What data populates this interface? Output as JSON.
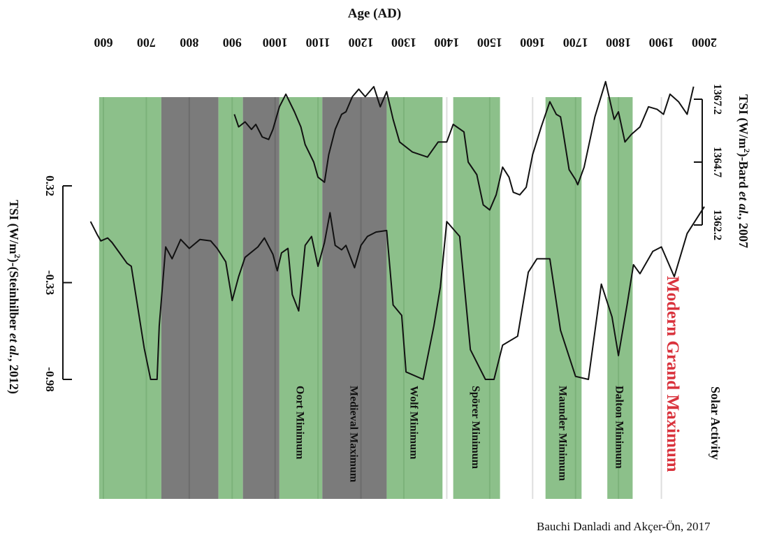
{
  "chart_data": {
    "type": "line",
    "xlabel": "Age (AD)",
    "x_ticks": [
      600,
      700,
      800,
      900,
      1000,
      1100,
      1200,
      1300,
      1400,
      1500,
      1600,
      1700,
      1800,
      1900,
      2000
    ],
    "x_range": [
      570,
      2020
    ],
    "colors": {
      "green": "#8cc08a",
      "grey": "#7b7b7b",
      "modern": "#d9323c",
      "line": "#111111"
    },
    "periods": [
      {
        "label": "",
        "start": 590,
        "end": 735,
        "kind": "minimum"
      },
      {
        "label": "",
        "start": 735,
        "end": 868,
        "kind": "maximum"
      },
      {
        "label": "",
        "start": 868,
        "end": 925,
        "kind": "minimum"
      },
      {
        "label": "",
        "start": 925,
        "end": 1010,
        "kind": "maximum"
      },
      {
        "label": "Oort Minimum",
        "start": 1010,
        "end": 1110,
        "kind": "minimum"
      },
      {
        "label": "Medieval Maximum",
        "start": 1110,
        "end": 1260,
        "kind": "maximum"
      },
      {
        "label": "Wolf Minimum",
        "start": 1260,
        "end": 1390,
        "kind": "minimum"
      },
      {
        "label": "Spörer Minimum",
        "start": 1415,
        "end": 1524,
        "kind": "minimum"
      },
      {
        "label": "Maunder Minimum",
        "start": 1630,
        "end": 1714,
        "kind": "minimum"
      },
      {
        "label": "Dalton Minimum",
        "start": 1774,
        "end": 1833,
        "kind": "minimum"
      }
    ],
    "annotation": "Modern Grand Maximum",
    "solar_label": "Solar Activity",
    "credit": "Bauchi Danladi and Akçer-Ön, 2017",
    "series": [
      {
        "name": "Steinhilber et al., 2012",
        "label_prefix": "TSI (W/m",
        "label_suffix": ")-(Steinhilber ",
        "label_italic": "et al.",
        "label_end": ", 2012)",
        "ticks": [
          "0.32",
          "-0.33",
          "-0.98"
        ],
        "tick_values": [
          0.32,
          -0.33,
          -0.98
        ],
        "ylim": [
          -0.98,
          0.32
        ],
        "x": [
          570,
          586,
          594,
          610,
          620,
          640,
          655,
          665,
          695,
          710,
          725,
          730,
          745,
          760,
          780,
          800,
          825,
          850,
          865,
          885,
          900,
          915,
          930,
          960,
          975,
          995,
          1005,
          1015,
          1030,
          1040,
          1055,
          1070,
          1085,
          1100,
          1115,
          1128,
          1140,
          1155,
          1165,
          1185,
          1200,
          1215,
          1235,
          1260,
          1275,
          1295,
          1305,
          1345,
          1370,
          1385,
          1400,
          1430,
          1455,
          1490,
          1510,
          1530,
          1565,
          1590,
          1610,
          1640,
          1665,
          1700,
          1730,
          1760,
          1785,
          1800,
          1820,
          1835,
          1850,
          1880,
          1900,
          1930,
          1960,
          2000
        ],
        "y": [
          0.08,
          -0.01,
          -0.05,
          -0.03,
          -0.06,
          -0.14,
          -0.2,
          -0.22,
          -0.77,
          -0.98,
          -0.98,
          -0.62,
          -0.09,
          -0.17,
          -0.04,
          -0.1,
          -0.04,
          -0.05,
          -0.1,
          -0.19,
          -0.45,
          -0.29,
          -0.16,
          -0.09,
          -0.03,
          -0.14,
          -0.25,
          -0.13,
          -0.1,
          -0.41,
          -0.52,
          -0.08,
          -0.02,
          -0.22,
          -0.06,
          0.14,
          -0.08,
          -0.11,
          -0.08,
          -0.23,
          -0.08,
          -0.02,
          0.01,
          0.02,
          -0.48,
          -0.55,
          -0.93,
          -0.98,
          -0.62,
          -0.36,
          0.08,
          -0.02,
          -0.78,
          -0.98,
          -0.98,
          -0.75,
          -0.69,
          -0.26,
          -0.17,
          -0.17,
          -0.65,
          -0.96,
          -0.98,
          -0.34,
          -0.56,
          -0.82,
          -0.48,
          -0.21,
          -0.27,
          -0.12,
          -0.09,
          -0.29,
          0.0,
          0.18
        ]
      },
      {
        "name": "Bard et al., 2007",
        "label_prefix": "TSI (W/m",
        "label_suffix": ")-Bard ",
        "label_italic": "et al.",
        "label_end": ", 2007",
        "ticks": [
          "1367.2",
          "1364.7",
          "1362.2"
        ],
        "tick_values": [
          1367.2,
          1364.7,
          1362.2
        ],
        "ylim": [
          1362.2,
          1367.2
        ],
        "x": [
          905,
          915,
          930,
          945,
          955,
          970,
          985,
          995,
          1010,
          1025,
          1045,
          1060,
          1070,
          1090,
          1100,
          1115,
          1125,
          1140,
          1155,
          1165,
          1180,
          1195,
          1210,
          1230,
          1245,
          1260,
          1275,
          1290,
          1320,
          1355,
          1380,
          1400,
          1415,
          1440,
          1450,
          1470,
          1485,
          1500,
          1515,
          1530,
          1545,
          1555,
          1570,
          1585,
          1600,
          1620,
          1640,
          1655,
          1665,
          1670,
          1685,
          1700,
          1705,
          1720,
          1745,
          1770,
          1790,
          1800,
          1815,
          1830,
          1850,
          1870,
          1890,
          1905,
          1920,
          1940,
          1960,
          1975
        ],
        "y": [
          1366.6,
          1366.1,
          1366.3,
          1366.0,
          1366.2,
          1365.7,
          1365.6,
          1366.0,
          1366.9,
          1367.4,
          1366.7,
          1366.1,
          1365.4,
          1364.7,
          1364.1,
          1363.9,
          1365.0,
          1366.0,
          1366.6,
          1366.7,
          1367.3,
          1367.6,
          1367.3,
          1367.7,
          1366.9,
          1367.5,
          1366.4,
          1365.5,
          1365.1,
          1364.9,
          1365.5,
          1365.5,
          1366.2,
          1365.9,
          1364.7,
          1364.2,
          1363.0,
          1362.8,
          1363.4,
          1364.5,
          1364.1,
          1363.5,
          1363.4,
          1363.7,
          1365.0,
          1366.1,
          1367.1,
          1366.6,
          1366.5,
          1366.0,
          1364.4,
          1364.0,
          1363.8,
          1364.5,
          1366.5,
          1367.9,
          1366.4,
          1366.7,
          1365.5,
          1365.8,
          1366.1,
          1366.9,
          1366.8,
          1366.6,
          1367.4,
          1367.1,
          1366.6,
          1367.7
        ]
      }
    ]
  }
}
